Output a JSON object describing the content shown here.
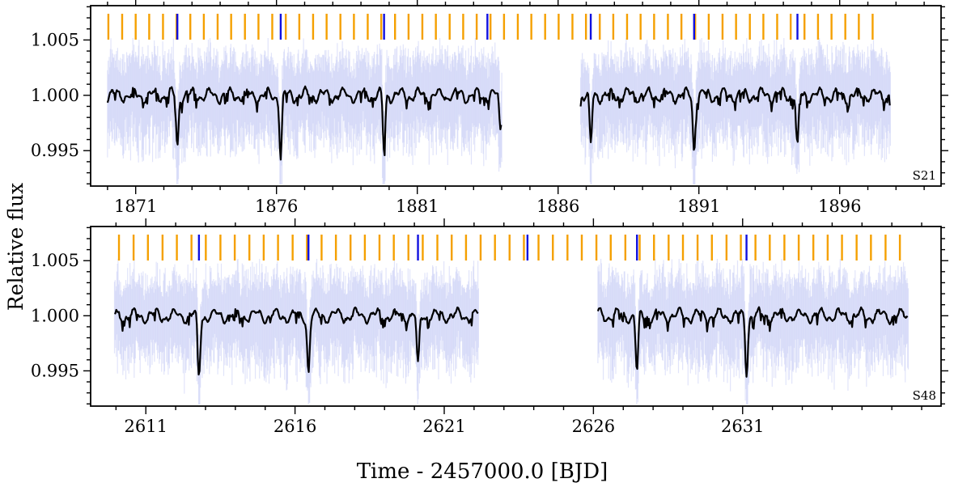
{
  "figure": {
    "ylabel": "Relative flux",
    "xlabel": "Time - 2457000.0 [BJD]"
  },
  "colors": {
    "flux_line": "#000000",
    "raw_flux": "#c9cdf5",
    "tick_orange": "#f5a000",
    "tick_blue": "#1010e0"
  },
  "chart_data": [
    {
      "type": "line",
      "sector_label": "S21",
      "xlim": [
        1869.4,
        1899.6
      ],
      "ylim": [
        0.9918,
        1.0081
      ],
      "xticks": [
        1871,
        1876,
        1881,
        1886,
        1891,
        1896
      ],
      "xtick_labels": [
        "1871",
        "1876",
        "1881",
        "1886",
        "1891",
        "1896"
      ],
      "yticks": [
        0.995,
        1.0,
        1.005
      ],
      "ytick_labels": [
        "0.995",
        "1.000",
        "1.005"
      ],
      "segments": [
        [
          1870.0,
          1884.0
        ],
        [
          1886.8,
          1897.8
        ]
      ],
      "orange_ticks": [
        1870.03,
        1870.52,
        1871.0,
        1871.48,
        1871.97,
        1872.45,
        1872.94,
        1873.42,
        1873.91,
        1874.39,
        1874.88,
        1875.36,
        1875.85,
        1876.33,
        1876.81,
        1877.3,
        1877.78,
        1878.27,
        1878.75,
        1879.24,
        1879.72,
        1880.21,
        1880.69,
        1881.18,
        1881.66,
        1882.15,
        1882.63,
        1883.11,
        1883.6,
        1884.08,
        1884.57,
        1885.05,
        1885.54,
        1886.02,
        1886.51,
        1886.99,
        1887.48,
        1887.96,
        1888.45,
        1888.93,
        1889.41,
        1889.9,
        1890.38,
        1890.87,
        1891.35,
        1891.84,
        1892.32,
        1892.81,
        1893.29,
        1893.78,
        1894.26,
        1894.75,
        1895.23,
        1895.71,
        1896.2,
        1896.68,
        1897.17
      ],
      "blue_ticks": [
        1872.48,
        1876.15,
        1879.82,
        1883.49,
        1887.16,
        1890.83,
        1894.5
      ],
      "transits": [
        {
          "t": 1872.48,
          "depth": 0.0047
        },
        {
          "t": 1876.15,
          "depth": 0.0056
        },
        {
          "t": 1879.82,
          "depth": 0.0051
        },
        {
          "t": 1883.95,
          "depth": 0.0032
        },
        {
          "t": 1887.16,
          "depth": 0.0048
        },
        {
          "t": 1890.83,
          "depth": 0.005
        },
        {
          "t": 1894.5,
          "depth": 0.005
        }
      ]
    },
    {
      "type": "line",
      "sector_label": "S48",
      "xlim": [
        2609.15,
        2637.65
      ],
      "ylim": [
        0.9918,
        1.0081
      ],
      "xticks": [
        2611,
        2616,
        2621,
        2626,
        2631
      ],
      "xtick_labels": [
        "2611",
        "2616",
        "2621",
        "2626",
        "2631"
      ],
      "yticks": [
        0.995,
        1.0,
        1.005
      ],
      "ytick_labels": [
        "0.995",
        "1.000",
        "1.005"
      ],
      "segments": [
        [
          2609.95,
          2622.15
        ],
        [
          2626.15,
          2636.55
        ]
      ],
      "orange_ticks": [
        2610.1,
        2610.59,
        2611.07,
        2611.56,
        2612.04,
        2612.53,
        2613.01,
        2613.5,
        2613.98,
        2614.47,
        2614.95,
        2615.43,
        2615.92,
        2616.4,
        2616.89,
        2617.37,
        2617.86,
        2618.34,
        2618.83,
        2619.31,
        2619.8,
        2620.28,
        2620.77,
        2621.25,
        2621.73,
        2622.22,
        2622.7,
        2623.19,
        2623.67,
        2624.16,
        2624.64,
        2625.13,
        2625.61,
        2626.1,
        2626.58,
        2627.07,
        2627.55,
        2628.03,
        2628.52,
        2629.0,
        2629.49,
        2629.97,
        2630.46,
        2630.94,
        2631.43,
        2631.91,
        2632.4,
        2632.88,
        2633.37,
        2633.85,
        2634.33,
        2634.82,
        2635.3,
        2635.79,
        2636.27
      ],
      "blue_ticks": [
        2612.78,
        2616.45,
        2620.12,
        2623.79,
        2627.46,
        2631.13
      ],
      "transits": [
        {
          "t": 2612.78,
          "depth": 0.0057
        },
        {
          "t": 2616.45,
          "depth": 0.005
        },
        {
          "t": 2620.12,
          "depth": 0.0049
        },
        {
          "t": 2627.46,
          "depth": 0.0053
        },
        {
          "t": 2631.13,
          "depth": 0.005
        }
      ]
    }
  ]
}
